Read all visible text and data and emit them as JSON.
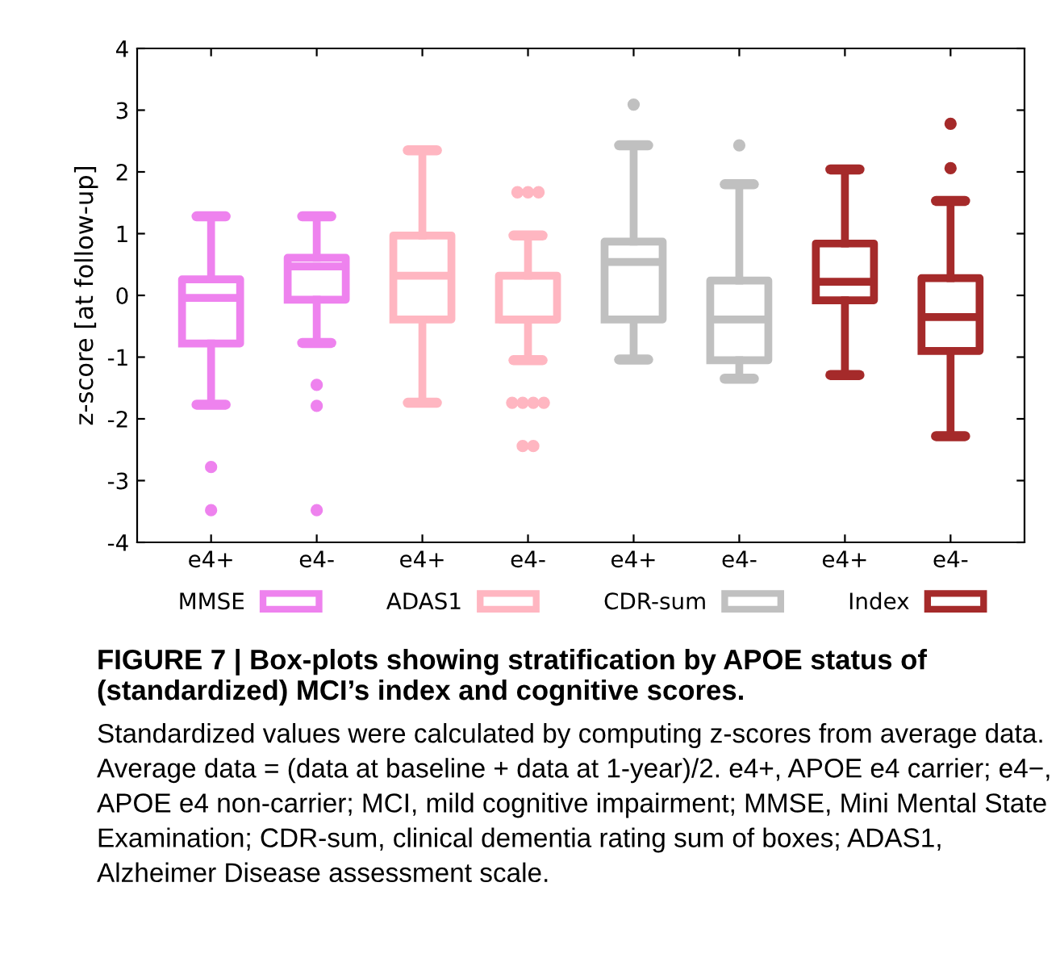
{
  "chart_data": {
    "type": "box",
    "title": "FIGURE 7 | Box-plots showing stratification by APOE status of (standardized) MCI’s index and cognitive scores.",
    "ylabel": "z-score [at follow-up]",
    "categories": [
      "e4+",
      "e4-",
      "e4+",
      "e4-",
      "e4+",
      "e4-",
      "e4+",
      "e4-"
    ],
    "ylim": [
      -4,
      4
    ],
    "yticks": [
      -4,
      -3,
      -2,
      -1,
      0,
      1,
      2,
      3,
      4
    ],
    "grid": false,
    "legend": "bottom",
    "series": [
      {
        "name": "MMSE",
        "color": "#ee82ee",
        "boxes": [
          {
            "low": -1.77,
            "q1": -0.78,
            "median": -0.04,
            "q3": 0.26,
            "high": 1.28,
            "outliers": [
              -2.78,
              -3.48
            ]
          },
          {
            "low": -0.77,
            "q1": -0.07,
            "median": 0.47,
            "q3": 0.61,
            "high": 1.28,
            "outliers": [
              -1.45,
              -1.79,
              -3.48
            ]
          },
          null,
          null,
          null,
          null,
          null,
          null
        ]
      },
      {
        "name": "ADAS1",
        "color": "#ffb6c1",
        "boxes": [
          null,
          null,
          {
            "low": -1.74,
            "q1": -0.39,
            "median": 0.32,
            "q3": 0.97,
            "high": 2.35
          },
          {
            "low": -1.05,
            "q1": -0.39,
            "median": -0.39,
            "q3": 0.32,
            "high": 0.97,
            "outliers": [
              1.67,
              1.67,
              1.67,
              -1.74,
              -1.74,
              -1.74,
              -1.74,
              -2.44,
              -2.44
            ]
          },
          null,
          null,
          null,
          null
        ]
      },
      {
        "name": "CDR-sum",
        "color": "#c0c0c0",
        "boxes": [
          null,
          null,
          null,
          null,
          {
            "low": -1.04,
            "q1": -0.39,
            "median": 0.54,
            "q3": 0.87,
            "high": 2.43,
            "outliers": [
              3.09
            ]
          },
          {
            "low": -1.35,
            "q1": -1.05,
            "median": -0.39,
            "q3": 0.24,
            "high": 1.8,
            "outliers": [
              2.43
            ]
          },
          null,
          null
        ]
      },
      {
        "name": "Index",
        "color": "#a52a2a",
        "boxes": [
          null,
          null,
          null,
          null,
          null,
          null,
          {
            "low": -1.29,
            "q1": -0.08,
            "median": 0.22,
            "q3": 0.84,
            "high": 2.04
          },
          {
            "low": -2.28,
            "q1": -0.9,
            "median": -0.35,
            "q3": 0.28,
            "high": 1.53,
            "outliers": [
              2.78,
              2.06
            ]
          }
        ]
      }
    ],
    "annotations": [
      "Standardized values were calculated by computing z-scores from average data. Average data = (data at baseline + data at 1-year)/2. e4+, APOE e4 carrier; e4−, APOE e4 non-carrier; MCI, mild cognitive impairment; MMSE, Mini Mental State Examination; CDR-sum, clinical dementia rating sum of boxes; ADAS1, Alzheimer Disease assessment scale."
    ]
  }
}
